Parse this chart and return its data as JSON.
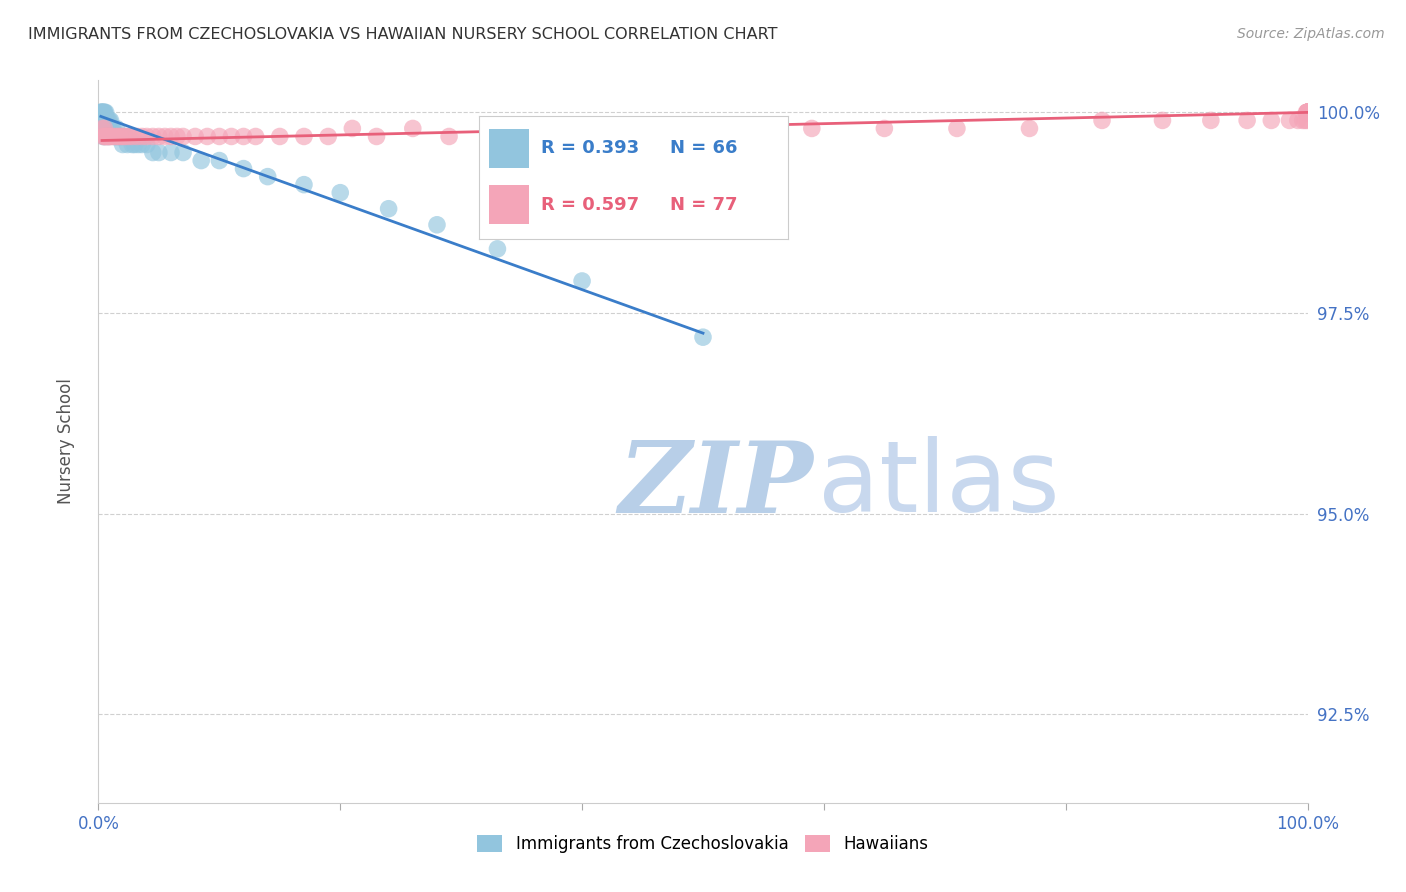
{
  "title": "IMMIGRANTS FROM CZECHOSLOVAKIA VS HAWAIIAN NURSERY SCHOOL CORRELATION CHART",
  "source": "Source: ZipAtlas.com",
  "ylabel": "Nursery School",
  "watermark_zip": "ZIP",
  "watermark_atlas": "atlas",
  "xlim": [
    0.0,
    1.0
  ],
  "ylim": [
    0.914,
    1.004
  ],
  "yticks": [
    0.925,
    0.95,
    0.975,
    1.0
  ],
  "ytick_labels": [
    "92.5%",
    "95.0%",
    "97.5%",
    "100.0%"
  ],
  "xtick_positions": [
    0.0,
    0.2,
    0.4,
    0.6,
    0.8,
    1.0
  ],
  "xtick_labels": [
    "0.0%",
    "",
    "",
    "",
    "",
    "100.0%"
  ],
  "legend_r1": "R = 0.393",
  "legend_n1": "N = 66",
  "legend_r2": "R = 0.597",
  "legend_n2": "N = 77",
  "blue_color": "#92c5de",
  "pink_color": "#f4a5b8",
  "blue_line_color": "#3a7dc9",
  "pink_line_color": "#e8607a",
  "tick_color": "#4472c4",
  "grid_color": "#d0d0d0",
  "blue_label": "Immigrants from Czechoslovakia",
  "pink_label": "Hawaiians",
  "blue_scatter_x": [
    0.002,
    0.002,
    0.002,
    0.002,
    0.003,
    0.003,
    0.003,
    0.003,
    0.003,
    0.004,
    0.004,
    0.004,
    0.004,
    0.004,
    0.004,
    0.005,
    0.005,
    0.005,
    0.005,
    0.005,
    0.005,
    0.006,
    0.006,
    0.006,
    0.007,
    0.007,
    0.007,
    0.008,
    0.008,
    0.009,
    0.009,
    0.01,
    0.01,
    0.011,
    0.012,
    0.013,
    0.014,
    0.015,
    0.016,
    0.017,
    0.018,
    0.019,
    0.02,
    0.022,
    0.024,
    0.026,
    0.028,
    0.03,
    0.033,
    0.036,
    0.04,
    0.045,
    0.05,
    0.06,
    0.07,
    0.085,
    0.1,
    0.12,
    0.14,
    0.17,
    0.2,
    0.24,
    0.28,
    0.33,
    0.4,
    0.5
  ],
  "blue_scatter_y": [
    1.0,
    1.0,
    1.0,
    0.999,
    1.0,
    1.0,
    0.999,
    0.999,
    0.998,
    1.0,
    1.0,
    0.999,
    0.999,
    0.998,
    0.997,
    1.0,
    1.0,
    0.999,
    0.999,
    0.998,
    0.997,
    1.0,
    0.999,
    0.998,
    0.999,
    0.998,
    0.997,
    0.999,
    0.998,
    0.999,
    0.997,
    0.999,
    0.998,
    0.998,
    0.998,
    0.997,
    0.997,
    0.998,
    0.997,
    0.997,
    0.997,
    0.997,
    0.996,
    0.997,
    0.996,
    0.997,
    0.996,
    0.996,
    0.996,
    0.996,
    0.996,
    0.995,
    0.995,
    0.995,
    0.995,
    0.994,
    0.994,
    0.993,
    0.992,
    0.991,
    0.99,
    0.988,
    0.986,
    0.983,
    0.979,
    0.972
  ],
  "pink_scatter_x": [
    0.003,
    0.004,
    0.005,
    0.005,
    0.006,
    0.007,
    0.008,
    0.009,
    0.01,
    0.012,
    0.014,
    0.016,
    0.018,
    0.02,
    0.022,
    0.025,
    0.028,
    0.032,
    0.036,
    0.04,
    0.045,
    0.05,
    0.055,
    0.06,
    0.065,
    0.07,
    0.08,
    0.09,
    0.1,
    0.11,
    0.12,
    0.13,
    0.15,
    0.17,
    0.19,
    0.21,
    0.23,
    0.26,
    0.29,
    0.33,
    0.37,
    0.42,
    0.47,
    0.53,
    0.59,
    0.65,
    0.71,
    0.77,
    0.83,
    0.88,
    0.92,
    0.95,
    0.97,
    0.985,
    0.992,
    0.996,
    0.998,
    0.999,
    1.0,
    1.0,
    1.0,
    1.0,
    1.0,
    1.0,
    1.0,
    1.0,
    1.0,
    1.0,
    1.0,
    1.0,
    1.0,
    1.0,
    1.0,
    1.0,
    1.0,
    1.0,
    1.0
  ],
  "pink_scatter_y": [
    0.998,
    0.997,
    0.997,
    0.998,
    0.997,
    0.997,
    0.997,
    0.997,
    0.997,
    0.997,
    0.997,
    0.997,
    0.997,
    0.997,
    0.997,
    0.997,
    0.997,
    0.997,
    0.997,
    0.997,
    0.997,
    0.997,
    0.997,
    0.997,
    0.997,
    0.997,
    0.997,
    0.997,
    0.997,
    0.997,
    0.997,
    0.997,
    0.997,
    0.997,
    0.997,
    0.998,
    0.997,
    0.998,
    0.997,
    0.998,
    0.997,
    0.998,
    0.998,
    0.998,
    0.998,
    0.998,
    0.998,
    0.998,
    0.999,
    0.999,
    0.999,
    0.999,
    0.999,
    0.999,
    0.999,
    0.999,
    0.999,
    1.0,
    0.999,
    1.0,
    1.0,
    1.0,
    1.0,
    1.0,
    1.0,
    1.0,
    1.0,
    1.0,
    1.0,
    1.0,
    1.0,
    1.0,
    1.0,
    1.0,
    1.0,
    1.0,
    1.0
  ],
  "blue_trend_x": [
    0.002,
    0.5
  ],
  "blue_trend_y": [
    0.9995,
    0.9725
  ],
  "pink_trend_x": [
    0.003,
    1.0
  ],
  "pink_trend_y": [
    0.9965,
    1.0
  ]
}
